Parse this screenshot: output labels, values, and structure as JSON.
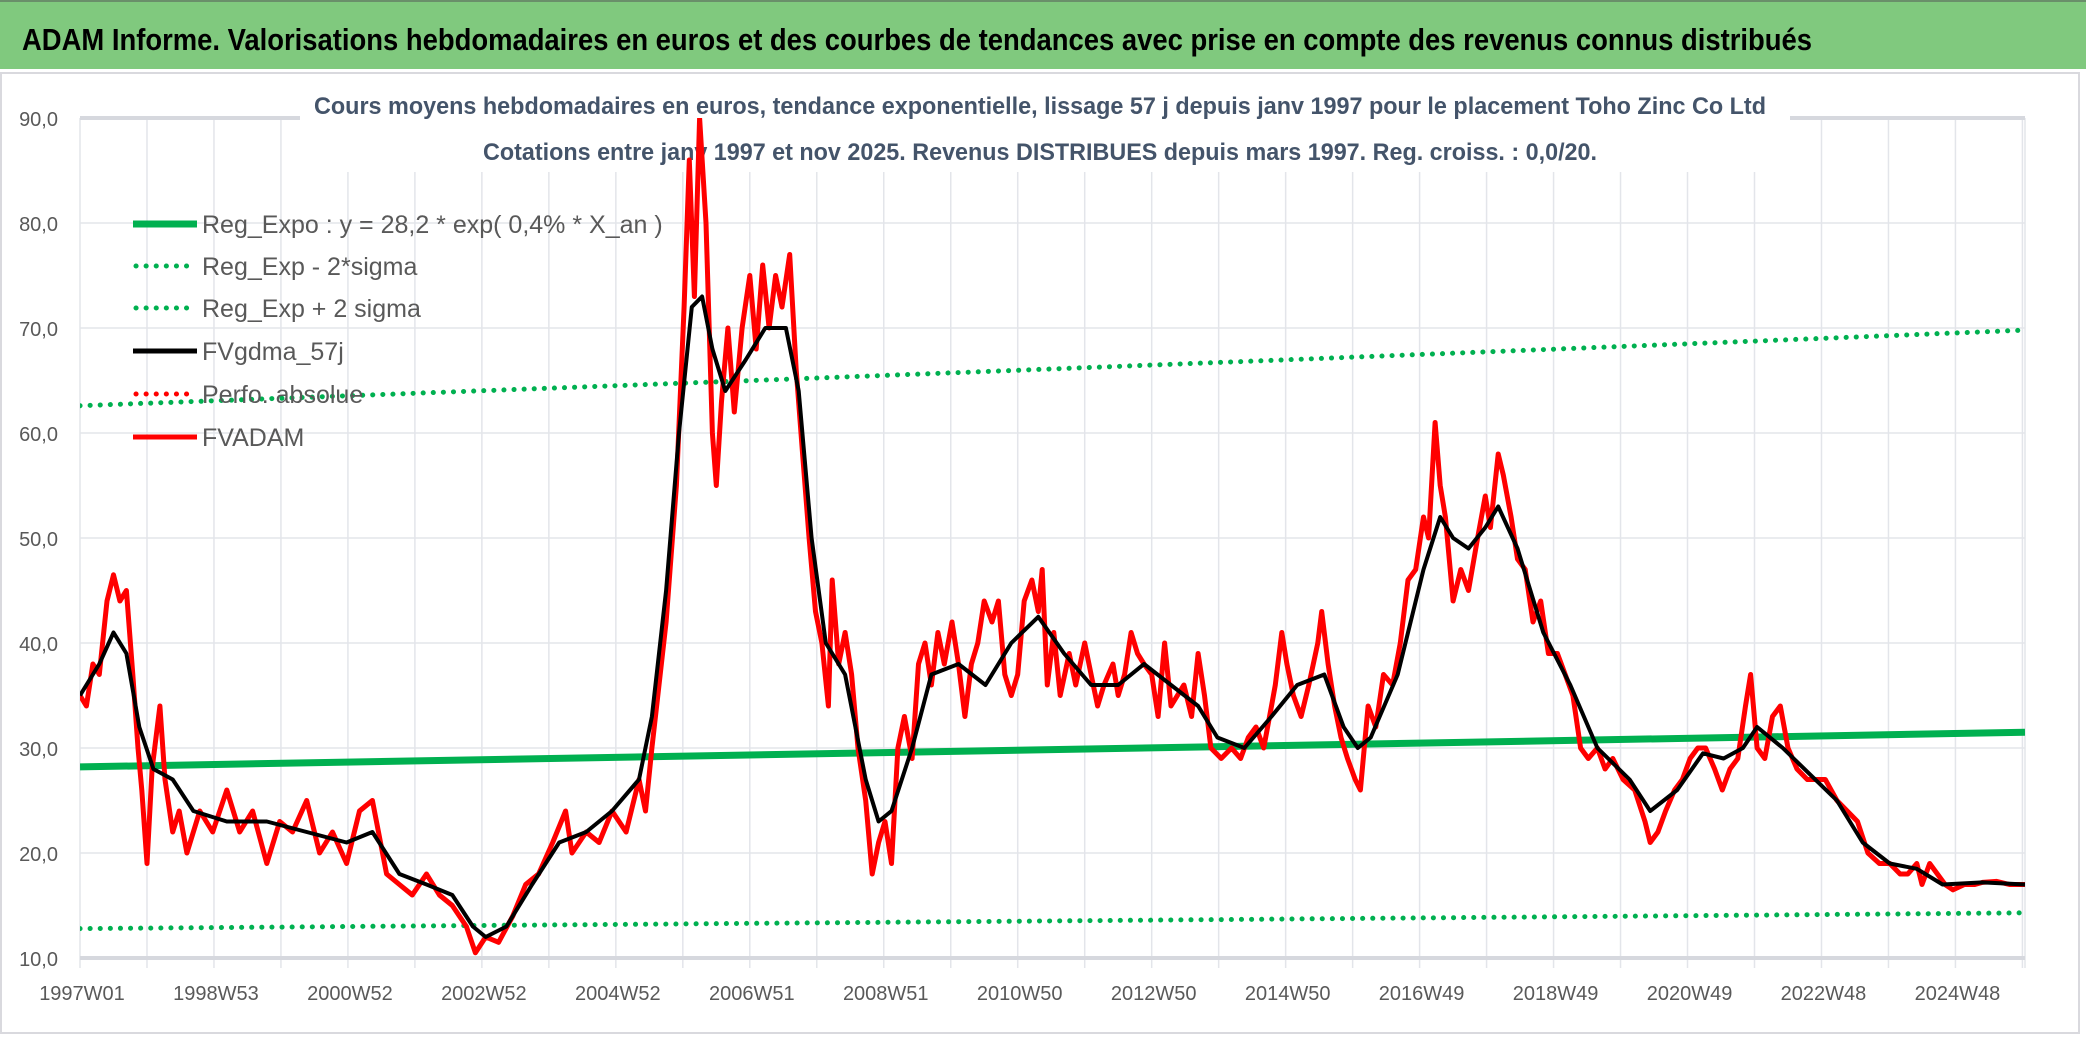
{
  "header": {
    "title": "ADAM Informe. Valorisations hebdomadaires en euros et des courbes de tendances avec prise en compte des revenus connus distribués"
  },
  "chart_data": {
    "type": "line",
    "title": "Cours moyens hebdomadaires en euros, tendance exponentielle, lissage 57 j depuis janv 1997 pour le placement Toho Zinc Co Ltd",
    "subtitle": "Cotations entre janv 1997 et nov 2025. Revenus DISTRIBUES depuis mars 1997. Reg. croiss. : 0,0/20.",
    "xlabel": "",
    "ylabel": "",
    "x_unit": "week index since 1997W01",
    "xlim": [
      0,
      1510
    ],
    "ylim": [
      10,
      90
    ],
    "y_ticks": [
      10,
      20,
      30,
      40,
      50,
      60,
      70,
      80,
      90
    ],
    "y_tick_labels": [
      "10,0",
      "20,0",
      "30,0",
      "40,0",
      "50,0",
      "60,0",
      "70,0",
      "80,0",
      "90,0"
    ],
    "x_tick_labels": [
      "1997W01",
      "1998W53",
      "2000W52",
      "2002W52",
      "2004W52",
      "2006W51",
      "2008W51",
      "2010W50",
      "2012W50",
      "2014W50",
      "2016W49",
      "2018W49",
      "2020W49",
      "2022W48",
      "2024W48"
    ],
    "x_tick_step_weeks": 104,
    "grid": true,
    "legend": {
      "placement": "top-left",
      "entries": [
        {
          "label": "Reg_Expo : y = 28,2 * exp( 0,4% *  X_an )",
          "color": "#00b050",
          "style": "solid"
        },
        {
          "label": "Reg_Exp - 2*sigma",
          "color": "#00b050",
          "style": "dotted"
        },
        {
          "label": "Reg_Exp + 2 sigma",
          "color": "#00b050",
          "style": "dotted"
        },
        {
          "label": "FVgdma_57j",
          "color": "#000000",
          "style": "solid"
        },
        {
          "label": "Perfo. absolue",
          "color": "#ff0000",
          "style": "dotted"
        },
        {
          "label": "FVADAM",
          "color": "#ff0000",
          "style": "solid"
        }
      ]
    },
    "series": [
      {
        "name": "Reg_Expo",
        "color": "#00b050",
        "style": "solid",
        "x": [
          0,
          1510
        ],
        "values": [
          28.2,
          31.5
        ]
      },
      {
        "name": "Reg_Exp - 2*sigma",
        "color": "#00b050",
        "style": "dotted",
        "x": [
          0,
          1510
        ],
        "values": [
          12.8,
          14.3
        ]
      },
      {
        "name": "Reg_Exp + 2 sigma",
        "color": "#00b050",
        "style": "dotted",
        "x": [
          0,
          1510
        ],
        "values": [
          62.6,
          69.8
        ]
      },
      {
        "name": "FVADAM",
        "color": "#ff0000",
        "style": "solid",
        "x": [
          0,
          5,
          10,
          15,
          21,
          26,
          31,
          36,
          41,
          45,
          48,
          52,
          56,
          62,
          66,
          72,
          77,
          83,
          93,
          103,
          114,
          124,
          134,
          145,
          155,
          165,
          176,
          186,
          196,
          207,
          217,
          227,
          238,
          248,
          258,
          269,
          279,
          289,
          300,
          307,
          315,
          325,
          336,
          346,
          356,
          367,
          377,
          382,
          393,
          403,
          413,
          424,
          434,
          439,
          444,
          455,
          463,
          469,
          473,
          477,
          481,
          486,
          491,
          494,
          498,
          503,
          508,
          514,
          520,
          525,
          530,
          535,
          540,
          545,
          551,
          556,
          561,
          566,
          571,
          576,
          581,
          584,
          589,
          594,
          599,
          604,
          610,
          615,
          620,
          625,
          630,
          635,
          640,
          646,
          651,
          656,
          661,
          666,
          671,
          677,
          682,
          687,
          692,
          697,
          702,
          708,
          713,
          718,
          723,
          728,
          733,
          739,
          744,
          747,
          751,
          756,
          761,
          768,
          773,
          780,
          785,
          790,
          795,
          802,
          806,
          811,
          816,
          821,
          826,
          832,
          837,
          842,
          847,
          852,
          857,
          863,
          868,
          873,
          878,
          886,
          894,
          901,
          907,
          913,
          919,
          925,
          928,
          933,
          937,
          942,
          948,
          954,
          961,
          964,
          969,
          974,
          979,
          984,
          990,
          994,
          1000,
          1006,
          1012,
          1019,
          1025,
          1031,
          1037,
          1043,
          1047,
          1052,
          1056,
          1060,
          1066,
          1072,
          1078,
          1085,
          1091,
          1095,
          1101,
          1105,
          1111,
          1116,
          1122,
          1128,
          1134,
          1140,
          1147,
          1153,
          1159,
          1165,
          1171,
          1178,
          1184,
          1190,
          1198,
          1207,
          1215,
          1219,
          1225,
          1231,
          1238,
          1244,
          1250,
          1256,
          1262,
          1269,
          1275,
          1281,
          1287,
          1293,
          1297,
          1302,
          1308,
          1314,
          1320,
          1326,
          1333,
          1341,
          1347,
          1355,
          1364,
          1372,
          1380,
          1388,
          1397,
          1405,
          1413,
          1419,
          1426,
          1430,
          1436,
          1442,
          1448,
          1454,
          1463,
          1471,
          1477,
          1488,
          1498,
          1510
        ],
        "values": [
          35,
          34,
          38,
          37,
          44,
          46.5,
          44,
          45,
          37,
          30,
          26,
          19,
          28,
          34,
          27,
          22,
          24,
          20,
          24,
          22,
          26,
          22,
          24,
          19,
          23,
          22,
          25,
          20,
          22,
          19,
          24,
          25,
          18,
          17,
          16,
          18,
          16,
          15,
          13,
          10.5,
          12,
          11.5,
          14,
          17,
          18,
          21,
          24,
          20,
          22,
          21,
          24,
          22,
          27,
          24,
          30,
          42,
          55,
          72,
          86,
          73,
          90,
          80,
          60,
          55,
          63,
          70,
          62,
          70,
          75,
          68,
          76,
          70,
          75,
          72,
          77,
          66,
          58,
          50,
          43,
          40,
          34,
          46,
          38,
          41,
          37,
          30,
          25,
          18,
          21,
          23,
          19,
          30,
          33,
          29,
          38,
          40,
          36,
          41,
          38,
          42,
          38,
          33,
          38,
          40,
          44,
          42,
          44,
          37,
          35,
          37,
          44,
          46,
          43,
          47,
          36,
          41,
          35,
          39,
          36,
          40,
          37,
          34,
          36,
          38,
          35,
          37,
          41,
          39,
          38,
          37,
          33,
          40,
          34,
          35,
          36,
          33,
          39,
          35,
          30,
          29,
          30,
          29,
          31,
          32,
          30,
          34,
          36,
          41,
          38,
          35,
          33,
          36,
          40,
          43,
          38,
          34,
          31,
          29,
          27,
          26,
          34,
          32,
          37,
          36,
          40,
          46,
          47,
          52,
          50,
          61,
          55,
          52,
          44,
          47,
          45,
          50,
          54,
          51,
          58,
          56,
          52,
          48,
          47,
          42,
          44,
          39,
          39,
          37,
          35,
          30,
          29,
          30,
          28,
          29,
          27,
          26,
          23,
          21,
          22,
          24,
          26,
          27,
          29,
          30,
          30,
          28,
          26,
          28,
          29,
          34,
          37,
          30,
          29,
          33,
          34,
          30,
          28,
          27,
          27,
          27,
          25,
          24,
          23,
          20,
          19,
          19,
          18,
          18,
          19,
          17,
          19,
          18,
          17,
          16.5,
          17,
          17,
          17.2,
          17.3,
          17,
          17
        ]
      },
      {
        "name": "FVgdma_57j",
        "color": "#000000",
        "style": "solid",
        "x": [
          0,
          15,
          26,
          36,
          46,
          57,
          72,
          88,
          114,
          145,
          176,
          207,
          227,
          248,
          269,
          289,
          305,
          315,
          331,
          351,
          372,
          393,
          413,
          434,
          444,
          455,
          465,
          475,
          483,
          491,
          501,
          517,
          532,
          548,
          558,
          568,
          579,
          594,
          610,
          620,
          630,
          646,
          661,
          682,
          703,
          723,
          744,
          764,
          785,
          806,
          826,
          847,
          868,
          883,
          904,
          925,
          945,
          966,
          981,
          992,
          1002,
          1023,
          1043,
          1056,
          1066,
          1078,
          1091,
          1101,
          1116,
          1136,
          1157,
          1178,
          1203,
          1219,
          1240,
          1260,
          1276,
          1291,
          1302,
          1322,
          1343,
          1364,
          1384,
          1405,
          1426,
          1446,
          1477,
          1510
        ],
        "values": [
          35,
          38,
          41,
          39,
          32,
          28,
          27,
          24,
          23,
          23,
          22,
          21,
          22,
          18,
          17,
          16,
          13,
          12,
          13,
          17,
          21,
          22,
          24,
          27,
          33,
          45,
          60,
          72,
          73,
          68,
          64,
          67,
          70,
          70,
          64,
          50,
          40,
          37,
          27,
          23,
          24,
          30,
          37,
          38,
          36,
          40,
          42.5,
          39,
          36,
          36,
          38,
          36,
          34,
          31,
          30,
          33,
          36,
          37,
          32,
          30,
          31,
          37,
          47,
          52,
          50,
          49,
          51,
          53,
          49,
          41,
          36,
          30,
          27,
          24,
          26,
          29.5,
          29,
          30,
          32,
          30,
          27.5,
          25,
          21,
          19,
          18.5,
          17,
          17.2,
          17
        ]
      }
    ]
  }
}
